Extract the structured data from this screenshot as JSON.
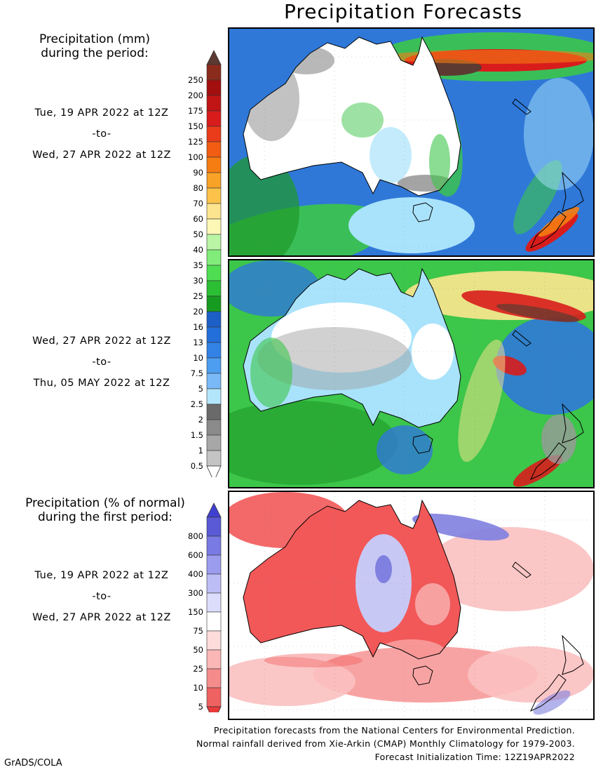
{
  "title": "Precipitation Forecasts",
  "amount_header": [
    "Precipitation (mm)",
    "during the period:"
  ],
  "percent_header": [
    "Precipitation (% of normal)",
    "during the first period:"
  ],
  "periods": [
    {
      "start": "Tue, 19 APR 2022 at 12Z",
      "sep": "-to-",
      "end": "Wed, 27 APR 2022 at 12Z"
    },
    {
      "start": "Wed, 27 APR 2022 at 12Z",
      "sep": "-to-",
      "end": "Thu, 05 MAY 2022 at 12Z"
    },
    {
      "start": "Tue, 19 APR 2022 at 12Z",
      "sep": "-to-",
      "end": "Wed, 27 APR 2022 at 12Z"
    }
  ],
  "amount_scale": {
    "labels": [
      "250",
      "200",
      "175",
      "150",
      "125",
      "100",
      "90",
      "80",
      "70",
      "60",
      "50",
      "40",
      "35",
      "30",
      "25",
      "20",
      "16",
      "13",
      "10",
      "7.5",
      "5",
      "2.5",
      "2",
      "1.5",
      "1",
      "0.5"
    ],
    "colors": [
      "#8b2b1c",
      "#a30f0f",
      "#c11414",
      "#d81c1c",
      "#ea3b1a",
      "#f15d12",
      "#f67d12",
      "#f8a227",
      "#fbc34a",
      "#fde58f",
      "#fdf7b6",
      "#b9f5a4",
      "#82ec7a",
      "#4fde52",
      "#2bbf33",
      "#179a20",
      "#1c5fc7",
      "#236fd9",
      "#3282e6",
      "#4d9df0",
      "#7ab9f7",
      "#b3e6fb",
      "#6a6a6a",
      "#8a8a8a",
      "#a7a7a7",
      "#c4c4c4"
    ],
    "top_color": "#5c3a31",
    "bottom_color": "#ffffff"
  },
  "percent_scale": {
    "labels": [
      "800",
      "600",
      "400",
      "300",
      "150",
      "75",
      "50",
      "25",
      "10",
      "5"
    ],
    "colors": [
      "#5a5ad6",
      "#7a7ae4",
      "#9c9cee",
      "#bdbdf6",
      "#dcdcfb",
      "#ffffff",
      "#ffdcdc",
      "#fbb6b6",
      "#f58c8c",
      "#ee6262"
    ],
    "top_color": "#4040d0",
    "bottom_color": "#e83a3a"
  },
  "footer": [
    "Precipitation forecasts from the National Centers for Environmental Prediction.",
    "Normal rainfall derived from Xie-Arkin (CMAP) Monthly Climatology for 1979-2003.",
    "Forecast Initialization Time: 12Z19APR2022"
  ],
  "credit": "GrADS/COLA",
  "map_colors": {
    "ocean_blue": "#2f78d8",
    "light_blue": "#a9e3fb",
    "green": "#3cc64a",
    "dark_green": "#1e9a28",
    "gray": "#9a9a9a",
    "white": "#ffffff",
    "red": "#d81c1c",
    "orange": "#f67d12",
    "yellow": "#fde58f",
    "brown": "#5c3a31",
    "pct_red": "#f25858",
    "pct_pink": "#fbc0c0",
    "pct_blue": "#8080e0"
  }
}
